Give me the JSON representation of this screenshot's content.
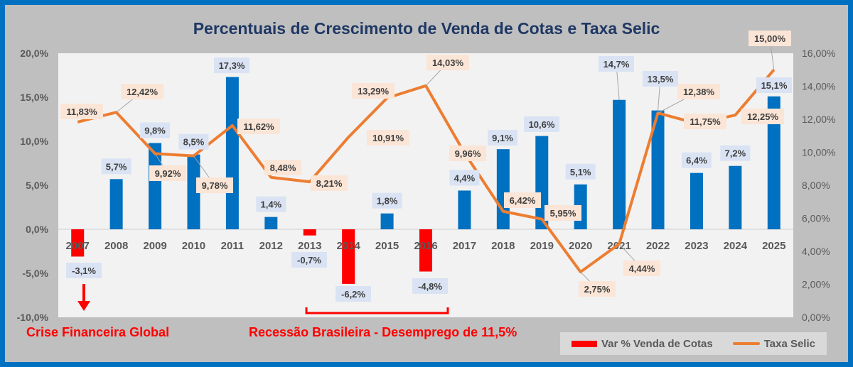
{
  "chart_data": {
    "type": "bar+line",
    "title": "Percentuais de Crescimento de Venda de Cotas e Taxa Selic",
    "categories": [
      "2007",
      "2008",
      "2009",
      "2010",
      "2011",
      "2012",
      "2013",
      "2014",
      "2015",
      "2016",
      "2017",
      "2018",
      "2019",
      "2020",
      "2021",
      "2022",
      "2023",
      "2024",
      "2025"
    ],
    "series": [
      {
        "name": "Var % Venda de Cotas",
        "type": "bar",
        "axis": "left",
        "values": [
          -3.1,
          5.7,
          9.8,
          8.5,
          17.3,
          1.4,
          -0.7,
          -6.2,
          1.8,
          -4.8,
          4.4,
          9.1,
          10.6,
          5.1,
          14.7,
          13.5,
          6.4,
          7.2,
          15.1
        ],
        "labels": [
          "-3,1%",
          "5,7%",
          "9,8%",
          "8,5%",
          "17,3%",
          "1,4%",
          "-0,7%",
          "-6,2%",
          "1,8%",
          "-4,8%",
          "4,4%",
          "9,1%",
          "10,6%",
          "5,1%",
          "14,7%",
          "13,5%",
          "6,4%",
          "7,2%",
          "15,1%"
        ]
      },
      {
        "name": "Taxa Selic",
        "type": "line",
        "axis": "right",
        "values": [
          11.83,
          12.42,
          9.92,
          9.78,
          11.62,
          8.48,
          8.21,
          10.91,
          13.29,
          14.03,
          9.96,
          6.42,
          5.95,
          2.75,
          4.44,
          12.38,
          11.75,
          12.25,
          15.0
        ],
        "labels": [
          "11,83%",
          "12,42%",
          "9,92%",
          "9,78%",
          "11,62%",
          "8,48%",
          "8,21%",
          "10,91%",
          "13,29%",
          "14,03%",
          "9,96%",
          "6,42%",
          "5,95%",
          "2,75%",
          "4,44%",
          "12,38%",
          "11,75%",
          "12,25%",
          "15,00%"
        ]
      }
    ],
    "left_axis": {
      "range": [
        -10,
        20
      ],
      "ticks": [
        "20,0%",
        "15,0%",
        "10,0%",
        "5,0%",
        "0,0%",
        "-5,0%",
        "-10,0%"
      ]
    },
    "right_axis": {
      "range": [
        0,
        16
      ],
      "ticks": [
        "16,00%",
        "14,00%",
        "12,00%",
        "10,00%",
        "8,00%",
        "6,00%",
        "4,00%",
        "2,00%",
        "0,00%"
      ]
    },
    "grid": false,
    "legend": "bottom-right",
    "colors": {
      "positive_bar": "#0070c0",
      "negative_bar": "#ff0000",
      "line": "#ed7d31",
      "title": "#1f3864",
      "annotation": "#ff0000"
    },
    "annotations": [
      "Crise Financeira Global",
      "Recessão Brasileira - Desemprego de 11,5%"
    ]
  }
}
